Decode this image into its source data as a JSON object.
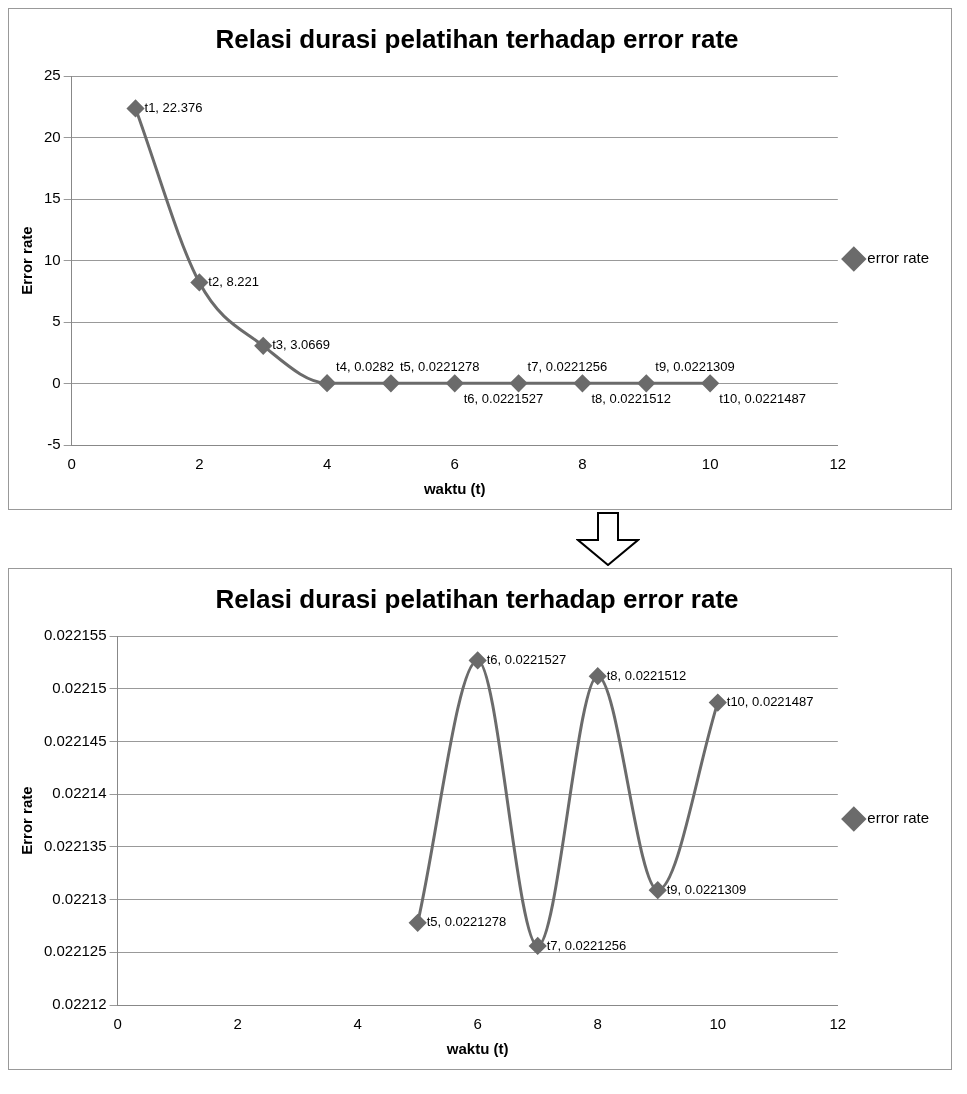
{
  "chart_data": [
    {
      "type": "line",
      "title": "Relasi durasi pelatihan terhadap error rate",
      "xlabel": "waktu (t)",
      "ylabel": "Error rate",
      "x": [
        1,
        2,
        3,
        4,
        5,
        6,
        7,
        8,
        9,
        10
      ],
      "series": [
        {
          "name": "error rate",
          "color": "#6b6b6b",
          "values": [
            22.376,
            8.221,
            3.0669,
            0.0282,
            0.0221278,
            0.0221527,
            0.0221256,
            0.0221512,
            0.0221309,
            0.0221487
          ],
          "value_labels": [
            "t1, 22.376",
            "t2, 8.221",
            "t3, 3.0669",
            "t4, 0.0282",
            "t5, 0.0221278",
            "t6, 0.0221527",
            "t7, 0.0221256",
            "t8, 0.0221512",
            "t9, 0.0221309",
            "t10, 0.0221487"
          ]
        }
      ],
      "xlim": [
        0,
        12
      ],
      "xticks": [
        0,
        2,
        4,
        6,
        8,
        10,
        12
      ],
      "ylim": [
        -5,
        25
      ],
      "yticks": [
        -5,
        0,
        5,
        10,
        15,
        20,
        25
      ],
      "grid": "y",
      "legend": "right",
      "marker": "diamond",
      "line_style": "solid"
    },
    {
      "type": "line",
      "title": "Relasi durasi pelatihan terhadap error rate",
      "xlabel": "waktu (t)",
      "ylabel": "Error rate",
      "x": [
        5,
        6,
        7,
        8,
        9,
        10
      ],
      "series": [
        {
          "name": "error rate",
          "color": "#6b6b6b",
          "values": [
            0.0221278,
            0.0221527,
            0.0221256,
            0.0221512,
            0.0221309,
            0.0221487
          ],
          "value_labels": [
            "t5, 0.0221278",
            "t6, 0.0221527",
            "t7, 0.0221256",
            "t8, 0.0221512",
            "t9, 0.0221309",
            "t10, 0.0221487"
          ]
        }
      ],
      "xlim": [
        0,
        12
      ],
      "xticks": [
        0,
        2,
        4,
        6,
        8,
        10,
        12
      ],
      "ylim": [
        0.02212,
        0.022155
      ],
      "yticks": [
        0.02212,
        0.022125,
        0.02213,
        0.022135,
        0.02214,
        0.022145,
        0.02215,
        0.022155
      ],
      "grid": "y",
      "legend": "right",
      "marker": "diamond",
      "line_style": "solid"
    }
  ]
}
